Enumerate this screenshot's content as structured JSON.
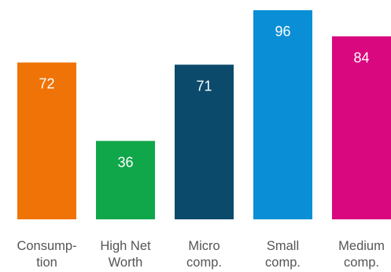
{
  "chart_data": {
    "type": "bar",
    "categories": [
      [
        "Consump-",
        "tion"
      ],
      [
        "High Net",
        "Worth"
      ],
      [
        "Micro",
        "comp."
      ],
      [
        "Small",
        "comp."
      ],
      [
        "Medium",
        "comp."
      ]
    ],
    "values": [
      72,
      36,
      71,
      96,
      84
    ],
    "colors": [
      "#ef7307",
      "#10a64a",
      "#0b4a6b",
      "#0a8fd6",
      "#d9087e"
    ],
    "data_labels": [
      "72",
      "36",
      "71",
      "96",
      "84"
    ],
    "ylim": [
      0,
      100
    ],
    "title": "",
    "xlabel": "",
    "ylabel": "",
    "grid": false,
    "legend": "none"
  }
}
